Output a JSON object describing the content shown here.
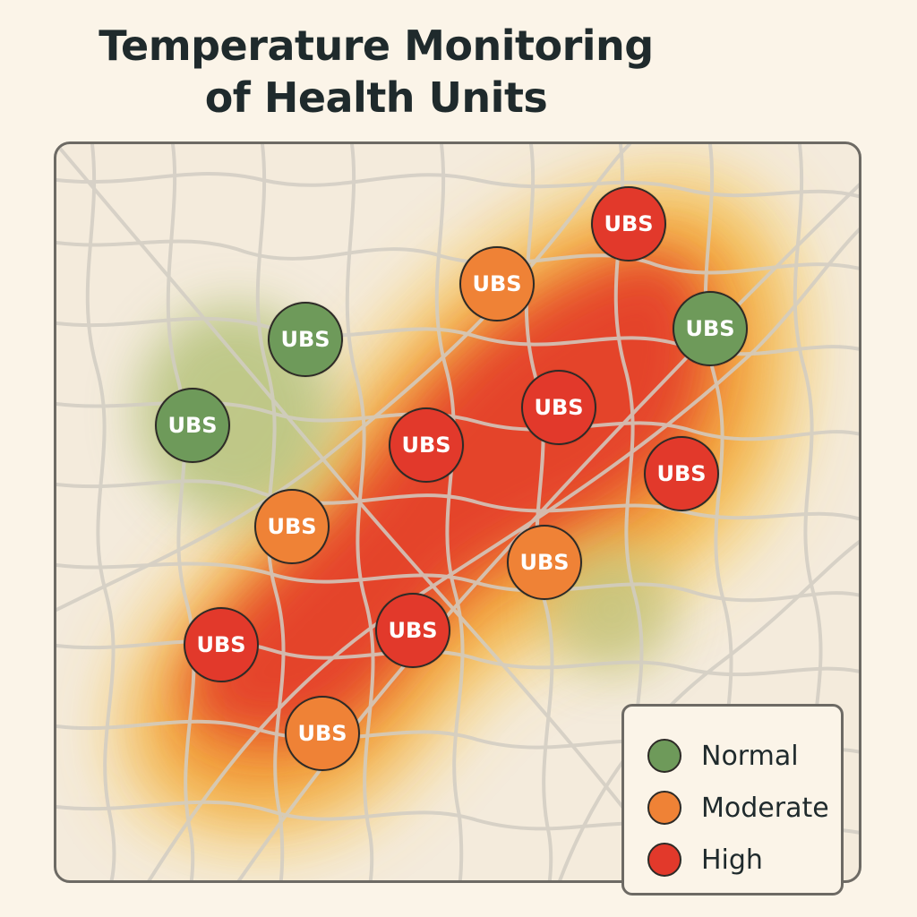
{
  "title": {
    "line1": "Temperature Monitoring",
    "line2": "of Health Units"
  },
  "colors": {
    "normal": "#6e9a5a",
    "moderate": "#ef8236",
    "high": "#e2392b",
    "road": "#d2cdc3"
  },
  "units": [
    {
      "label": "UBS",
      "status": "high"
    },
    {
      "label": "UBS",
      "status": "moderate"
    },
    {
      "label": "UBS",
      "status": "normal"
    },
    {
      "label": "UBS",
      "status": "normal"
    },
    {
      "label": "UBS",
      "status": "normal"
    },
    {
      "label": "UBS",
      "status": "high"
    },
    {
      "label": "UBS",
      "status": "high"
    },
    {
      "label": "UBS",
      "status": "high"
    },
    {
      "label": "UBS",
      "status": "moderate"
    },
    {
      "label": "UBS",
      "status": "moderate"
    },
    {
      "label": "UBS",
      "status": "high"
    },
    {
      "label": "UBS",
      "status": "high"
    },
    {
      "label": "UBS",
      "status": "moderate"
    }
  ],
  "legend": {
    "items": [
      {
        "label": "Normal",
        "status": "normal"
      },
      {
        "label": "Moderate",
        "status": "moderate"
      },
      {
        "label": "High",
        "status": "high"
      }
    ]
  }
}
